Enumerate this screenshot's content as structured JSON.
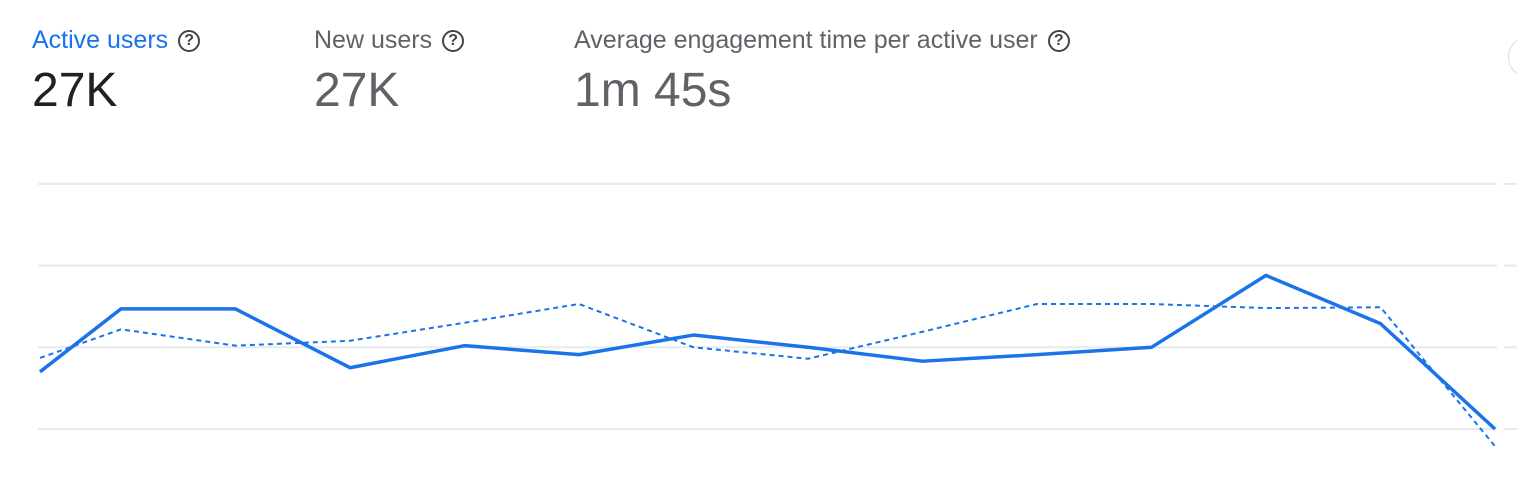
{
  "metrics": [
    {
      "label": "Active users",
      "value": "27K",
      "selected": true
    },
    {
      "label": "New users",
      "value": "27K",
      "selected": false
    },
    {
      "label": "Average engagement time per active user",
      "value": "1m 45s",
      "selected": false
    }
  ],
  "icons": {
    "help": "help-circle-icon"
  },
  "colors": {
    "accent": "#1a73e8",
    "grid": "#e8eaed"
  },
  "chart_data": {
    "type": "line",
    "grid": true,
    "ylim": [
      0,
      3
    ],
    "gridlines": [
      0,
      1,
      2,
      3
    ],
    "x": [
      0,
      1,
      2,
      3,
      4,
      5,
      6,
      7,
      8,
      9,
      10,
      11,
      12,
      13
    ],
    "series": [
      {
        "style": "solid",
        "color": "#1a73e8",
        "values": [
          0.7,
          1.47,
          1.47,
          0.75,
          1.02,
          0.91,
          1.15,
          1.0,
          0.83,
          0.91,
          1.0,
          1.88,
          1.29,
          0.0
        ]
      },
      {
        "style": "dashed",
        "color": "#1a73e8",
        "values": [
          0.87,
          1.22,
          1.02,
          1.08,
          1.3,
          1.53,
          1.0,
          0.86,
          1.19,
          1.53,
          1.53,
          1.48,
          1.49,
          -0.21
        ]
      }
    ]
  }
}
